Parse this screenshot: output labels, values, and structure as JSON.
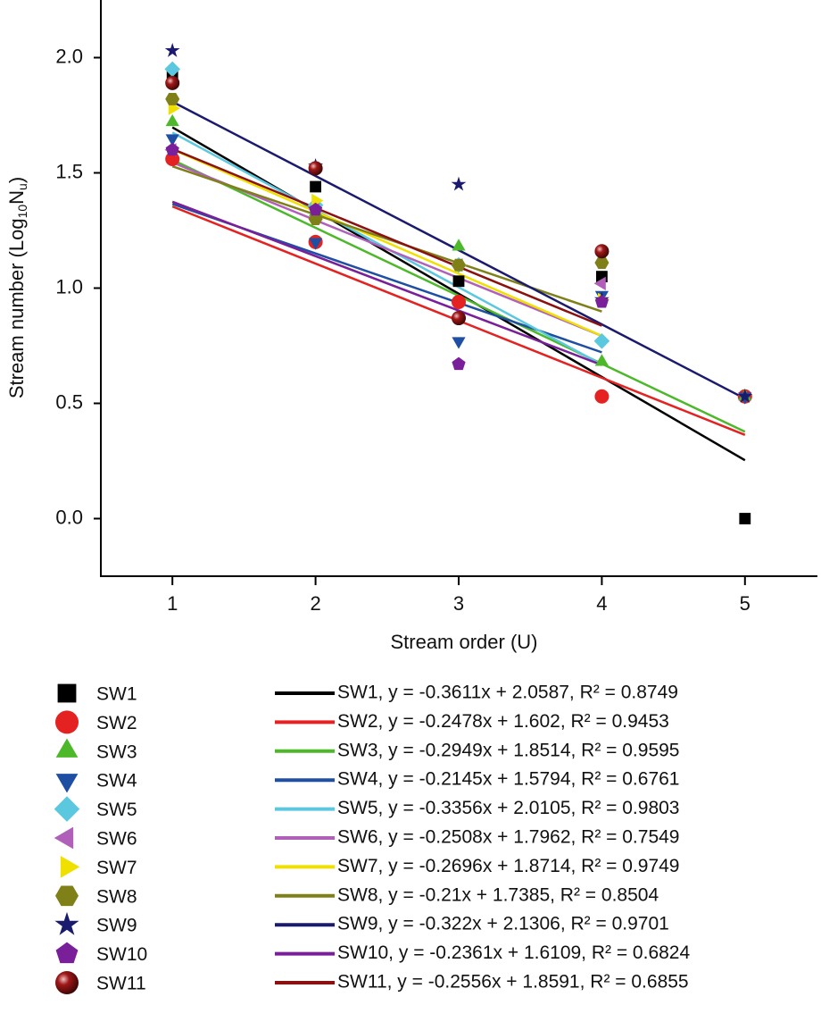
{
  "chart_data": {
    "type": "scatter",
    "xlabel": "Stream order (U)",
    "ylabel": [
      "Stream number (Log",
      "10",
      "N",
      "u",
      ")"
    ],
    "x": [
      1,
      2,
      3,
      4,
      5
    ],
    "xlim": [
      0.5,
      5.5
    ],
    "xticks": [
      1,
      2,
      3,
      4,
      5
    ],
    "ylim": [
      -0.25,
      2.25
    ],
    "yticks": [
      {
        "value": 0,
        "label": "0.0"
      },
      0.5,
      {
        "value": 1,
        "label": "1.0"
      },
      1.5,
      {
        "value": 2,
        "label": "2.0"
      }
    ],
    "series": [
      {
        "name": "SW1",
        "color": "#000000",
        "marker": "square",
        "values": [
          1.93,
          1.44,
          1.03,
          1.05,
          0.0
        ],
        "fit": {
          "slope": -0.3611,
          "intercept": 2.0587
        },
        "fit_x": [
          1,
          5
        ],
        "fit_label": "SW1, y = -0.3611x + 2.0587, R² = 0.8749"
      },
      {
        "name": "SW2",
        "color": "#e52222",
        "marker": "circle",
        "values": [
          1.56,
          1.2,
          0.94,
          0.53,
          0.53
        ],
        "fit": {
          "slope": -0.2478,
          "intercept": 1.602
        },
        "fit_x": [
          1,
          5
        ],
        "fit_label": "SW2, y = -0.2478x + 1.602, R² = 0.9453"
      },
      {
        "name": "SW3",
        "color": "#4cb82a",
        "marker": "triangle-up",
        "values": [
          1.72,
          1.33,
          1.18,
          0.68,
          0.53
        ],
        "fit": {
          "slope": -0.2949,
          "intercept": 1.8514
        },
        "fit_x": [
          1,
          5
        ],
        "fit_label": "SW3, y = -0.2949x + 1.8514, R² = 0.9595"
      },
      {
        "name": "SW4",
        "color": "#1f4fa3",
        "marker": "triangle-down",
        "values": [
          1.65,
          1.2,
          0.77,
          0.97,
          0.53
        ],
        "fit": {
          "slope": -0.2145,
          "intercept": 1.5794
        },
        "fit_x": [
          1,
          4
        ],
        "fit_label": "SW4, y = -0.2145x + 1.5794, R² = 0.6761"
      },
      {
        "name": "SW5",
        "color": "#5cc8e0",
        "marker": "diamond",
        "values": [
          1.95,
          1.36,
          1.1,
          0.77,
          null
        ],
        "fit": {
          "slope": -0.3356,
          "intercept": 2.0105
        },
        "fit_x": [
          1,
          4
        ],
        "fit_label": "SW5, y = -0.3356x + 2.0105, R² = 0.9803"
      },
      {
        "name": "SW6",
        "color": "#b060b8",
        "marker": "triangle-left",
        "values": [
          1.6,
          1.35,
          1.1,
          1.02,
          null
        ],
        "fit": {
          "slope": -0.2508,
          "intercept": 1.7962
        },
        "fit_x": [
          1,
          4
        ],
        "fit_label": "SW6, y = -0.2508x + 1.7962, R² = 0.7549"
      },
      {
        "name": "SW7",
        "color": "#f0e000",
        "marker": "triangle-right",
        "values": [
          1.78,
          1.38,
          1.1,
          0.95,
          null
        ],
        "fit": {
          "slope": -0.2696,
          "intercept": 1.8714
        },
        "fit_x": [
          1,
          4
        ],
        "fit_label": "SW7, y = -0.2696x + 1.8714, R² = 0.9749"
      },
      {
        "name": "SW8",
        "color": "#808018",
        "marker": "hexagon",
        "values": [
          1.82,
          1.3,
          1.1,
          1.11,
          null
        ],
        "fit": {
          "slope": -0.21,
          "intercept": 1.7385
        },
        "fit_x": [
          1,
          4
        ],
        "fit_label": "SW8, y = -0.21x + 1.7385, R² = 0.8504"
      },
      {
        "name": "SW9",
        "color": "#1a1a6e",
        "marker": "star",
        "values": [
          2.03,
          1.53,
          1.45,
          0.95,
          0.53
        ],
        "fit": {
          "slope": -0.322,
          "intercept": 2.1306
        },
        "fit_x": [
          1,
          5
        ],
        "fit_label": "SW9, y = -0.322x + 2.1306, R² = 0.9701"
      },
      {
        "name": "SW10",
        "color": "#7a1f9a",
        "marker": "pentagon",
        "values": [
          1.6,
          1.34,
          0.67,
          0.94,
          null
        ],
        "fit": {
          "slope": -0.2361,
          "intercept": 1.6109
        },
        "fit_x": [
          1,
          4
        ],
        "fit_label": "SW10, y = -0.2361x + 1.6109, R² = 0.6824"
      },
      {
        "name": "SW11",
        "color": "#8b1010",
        "marker": "sphere",
        "values": [
          1.89,
          1.52,
          0.87,
          1.16,
          null
        ],
        "fit": {
          "slope": -0.2556,
          "intercept": 1.8591
        },
        "fit_x": [
          1,
          4
        ],
        "fit_label": "SW11, y = -0.2556x + 1.8591, R² = 0.6855"
      }
    ]
  }
}
